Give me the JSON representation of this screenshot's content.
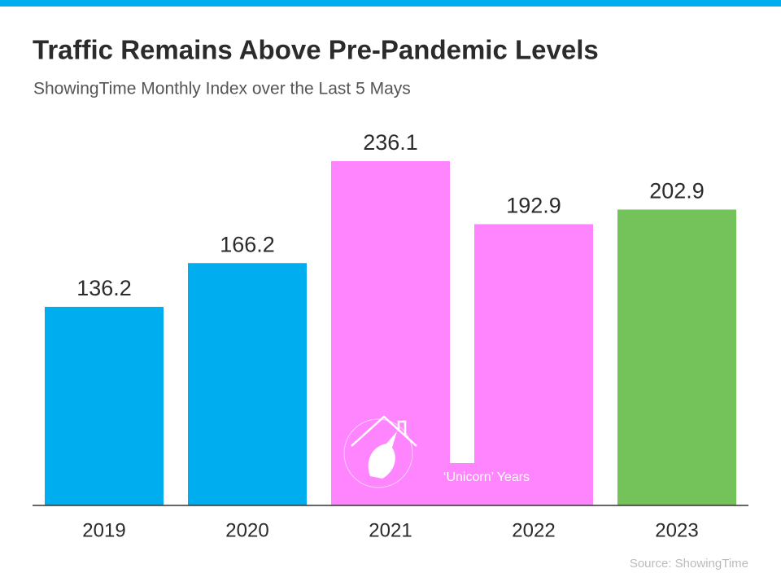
{
  "chart_data": {
    "type": "bar",
    "title": "Traffic Remains Above Pre-Pandemic Levels",
    "subtitle": "ShowingTime Monthly Index over the Last 5 Mays",
    "categories": [
      "2019",
      "2020",
      "2021",
      "2022",
      "2023"
    ],
    "values": [
      136.2,
      166.2,
      236.1,
      192.9,
      202.9
    ],
    "colors": [
      "#00aeef",
      "#00aeef",
      "#ff85ff",
      "#ff85ff",
      "#74c35a"
    ],
    "annotation": "‘Unicorn’ Years",
    "source": "Source: ShowingTime"
  }
}
